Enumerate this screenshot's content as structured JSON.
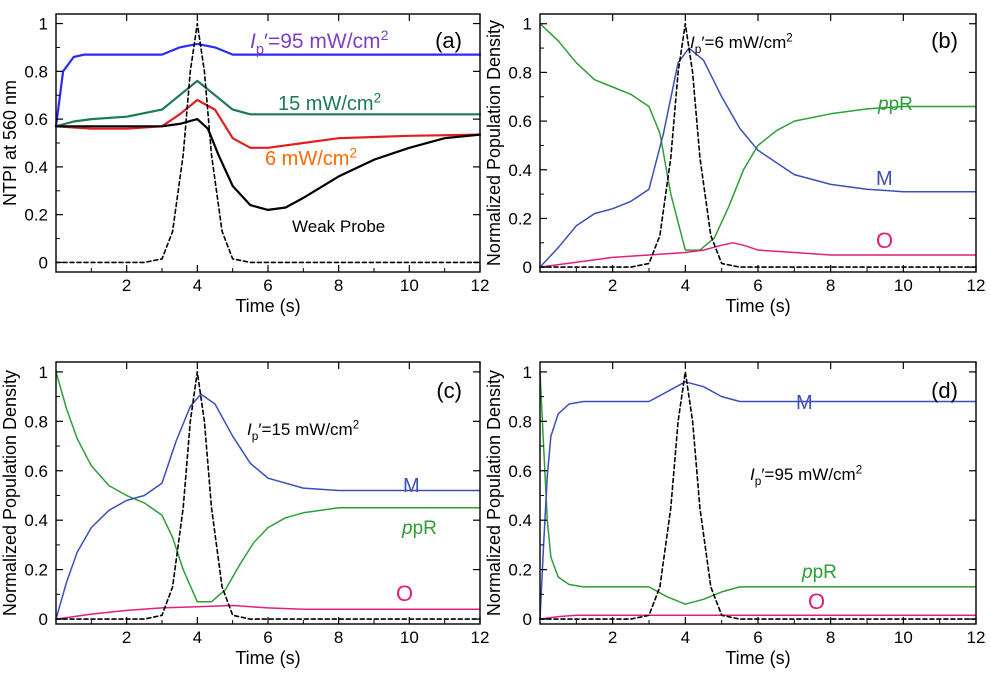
{
  "colors": {
    "blue": "#2a2aff",
    "blue_m": "#3b4fb8",
    "green_dark": "#1d7a55",
    "green": "#2e9e37",
    "red": "#e02020",
    "orange": "#ff6a00",
    "purple": "#8040c0",
    "magenta": "#e0207a",
    "black": "#000000"
  },
  "chart_data": [
    {
      "panel": "(a)",
      "type": "line",
      "xlabel": "Time (s)",
      "ylabel": "NTPI at 560 nm",
      "xlim": [
        0,
        12
      ],
      "ylim": [
        -0.04,
        1.04
      ],
      "xticks": [
        2,
        4,
        6,
        8,
        10,
        12
      ],
      "yticks": [
        0,
        0.2,
        0.4,
        0.6,
        0.8,
        1
      ],
      "ytick_labels": [
        "0",
        "0.2",
        "0.4",
        "0.6",
        "0.8",
        "1"
      ],
      "series": [
        {
          "name": "Ip'=95 mW/cm2",
          "color": "#2a2aff",
          "style": "solid",
          "x": [
            0,
            0.2,
            0.5,
            0.8,
            1.2,
            2,
            3,
            3.5,
            4,
            4.5,
            5,
            6,
            8,
            10,
            12
          ],
          "y": [
            0.57,
            0.8,
            0.86,
            0.87,
            0.87,
            0.87,
            0.87,
            0.9,
            0.915,
            0.9,
            0.87,
            0.87,
            0.87,
            0.87,
            0.87
          ]
        },
        {
          "name": "15 mW/cm2",
          "color": "#1d7a55",
          "style": "solid",
          "x": [
            0,
            0.5,
            1,
            2,
            3,
            3.5,
            4,
            4.5,
            5,
            5.5,
            6,
            8,
            10,
            12
          ],
          "y": [
            0.57,
            0.59,
            0.6,
            0.61,
            0.64,
            0.7,
            0.76,
            0.7,
            0.64,
            0.62,
            0.62,
            0.62,
            0.62,
            0.62
          ]
        },
        {
          "name": "6 mW/cm2",
          "color": "#e02020",
          "style": "solid",
          "x": [
            0,
            1,
            2,
            3,
            3.5,
            4,
            4.5,
            5,
            5.5,
            6,
            7,
            8,
            10,
            12
          ],
          "y": [
            0.57,
            0.56,
            0.56,
            0.57,
            0.62,
            0.68,
            0.64,
            0.52,
            0.48,
            0.48,
            0.5,
            0.52,
            0.53,
            0.535
          ]
        },
        {
          "name": "Weak Probe",
          "color": "#000000",
          "style": "solid",
          "x": [
            0,
            1,
            2,
            3,
            3.5,
            4,
            4.3,
            4.6,
            5,
            5.5,
            6,
            6.5,
            7,
            8,
            9,
            10,
            11,
            12
          ],
          "y": [
            0.57,
            0.57,
            0.57,
            0.57,
            0.58,
            0.6,
            0.56,
            0.45,
            0.32,
            0.24,
            0.22,
            0.23,
            0.27,
            0.36,
            0.43,
            0.48,
            0.52,
            0.535
          ]
        },
        {
          "name": "pulse",
          "color": "#000000",
          "style": "dashed",
          "x": [
            0,
            2.5,
            3.0,
            3.3,
            3.6,
            3.8,
            4.0,
            4.2,
            4.4,
            4.7,
            5.0,
            5.5,
            12
          ],
          "y": [
            0,
            0,
            0.015,
            0.13,
            0.45,
            0.8,
            1.0,
            0.8,
            0.45,
            0.13,
            0.015,
            0,
            0
          ]
        }
      ],
      "annotations": [
        {
          "text": "(a)",
          "color": "#000000"
        },
        {
          "text": "Ip′=95 mW/cm2",
          "color": "#8040c0"
        },
        {
          "text": "15  mW/cm2",
          "color": "#1d7a55"
        },
        {
          "text": "6  mW/cm2",
          "color": "#ff6a00"
        },
        {
          "text": "Weak Probe",
          "color": "#000000"
        }
      ]
    },
    {
      "panel": "(b)",
      "type": "line",
      "xlabel": "Time (s)",
      "ylabel": "Normalized Population Density",
      "xlim": [
        0,
        12
      ],
      "ylim": [
        -0.02,
        1.04
      ],
      "xticks": [
        2,
        4,
        6,
        8,
        10,
        12
      ],
      "yticks": [
        0,
        0.2,
        0.4,
        0.6,
        0.8,
        1
      ],
      "ytick_labels": [
        "0",
        "0.2",
        "0.4",
        "0.6",
        "0.8",
        "1"
      ],
      "series": [
        {
          "name": "ppR",
          "color": "#2e9e37",
          "style": "solid",
          "x": [
            0,
            0.5,
            1,
            1.5,
            2,
            2.5,
            3,
            3.3,
            3.6,
            4,
            4.4,
            4.8,
            5.2,
            5.6,
            6,
            6.5,
            7,
            8,
            9,
            10,
            12
          ],
          "y": [
            1.0,
            0.93,
            0.84,
            0.77,
            0.74,
            0.71,
            0.66,
            0.55,
            0.3,
            0.07,
            0.07,
            0.12,
            0.25,
            0.4,
            0.5,
            0.56,
            0.6,
            0.63,
            0.65,
            0.66,
            0.66
          ]
        },
        {
          "name": "M",
          "color": "#3b4fb8",
          "style": "solid",
          "x": [
            0,
            0.5,
            1,
            1.5,
            2,
            2.5,
            3,
            3.4,
            3.8,
            4.1,
            4.5,
            5,
            5.5,
            6,
            7,
            8,
            9,
            10,
            12
          ],
          "y": [
            0,
            0.08,
            0.17,
            0.22,
            0.24,
            0.27,
            0.32,
            0.55,
            0.84,
            0.9,
            0.85,
            0.7,
            0.57,
            0.48,
            0.38,
            0.34,
            0.32,
            0.31,
            0.31
          ]
        },
        {
          "name": "O",
          "color": "#e0207a",
          "style": "solid",
          "x": [
            0,
            1,
            2,
            3,
            4,
            4.5,
            5,
            5.3,
            5.6,
            6,
            7,
            8,
            10,
            12
          ],
          "y": [
            0,
            0.02,
            0.04,
            0.05,
            0.06,
            0.07,
            0.09,
            0.1,
            0.09,
            0.07,
            0.06,
            0.05,
            0.05,
            0.05
          ]
        },
        {
          "name": "pulse",
          "color": "#000000",
          "style": "dashed",
          "x": [
            0,
            2.5,
            3.0,
            3.3,
            3.6,
            3.8,
            4.0,
            4.2,
            4.4,
            4.7,
            5.0,
            5.5,
            12
          ],
          "y": [
            0,
            0,
            0.015,
            0.13,
            0.45,
            0.8,
            1.0,
            0.8,
            0.45,
            0.13,
            0.015,
            0,
            0
          ]
        }
      ],
      "annotations": [
        {
          "text": "(b)",
          "color": "#000000"
        },
        {
          "text": "Ip′=6 mW/cm2",
          "color": "#000000"
        },
        {
          "text": "ppR",
          "color": "#2e9e37"
        },
        {
          "text": "M",
          "color": "#3b4fb8"
        },
        {
          "text": "O",
          "color": "#e0207a"
        }
      ]
    },
    {
      "panel": "(c)",
      "type": "line",
      "xlabel": "Time (s)",
      "ylabel": "Normalized Population Density",
      "xlim": [
        0,
        12
      ],
      "ylim": [
        -0.02,
        1.04
      ],
      "xticks": [
        2,
        4,
        6,
        8,
        10,
        12
      ],
      "yticks": [
        0,
        0.2,
        0.4,
        0.6,
        0.8,
        1
      ],
      "ytick_labels": [
        "0",
        "0.2",
        "0.4",
        "0.6",
        "0.8",
        "1"
      ],
      "series": [
        {
          "name": "ppR",
          "color": "#2e9e37",
          "style": "solid",
          "x": [
            0,
            0.3,
            0.6,
            1,
            1.5,
            2,
            2.5,
            3,
            3.3,
            3.6,
            4,
            4.4,
            4.8,
            5.2,
            5.6,
            6,
            6.5,
            7,
            8,
            12
          ],
          "y": [
            1.0,
            0.85,
            0.73,
            0.62,
            0.54,
            0.5,
            0.47,
            0.42,
            0.33,
            0.2,
            0.07,
            0.07,
            0.12,
            0.22,
            0.31,
            0.37,
            0.41,
            0.43,
            0.45,
            0.45
          ]
        },
        {
          "name": "M",
          "color": "#3b4fb8",
          "style": "solid",
          "x": [
            0,
            0.3,
            0.6,
            1,
            1.5,
            2,
            2.5,
            3,
            3.4,
            3.8,
            4.1,
            4.5,
            5,
            5.5,
            6,
            7,
            8,
            10,
            12
          ],
          "y": [
            0,
            0.15,
            0.27,
            0.37,
            0.44,
            0.48,
            0.5,
            0.55,
            0.72,
            0.86,
            0.91,
            0.87,
            0.74,
            0.63,
            0.57,
            0.53,
            0.52,
            0.52,
            0.52
          ]
        },
        {
          "name": "O",
          "color": "#e0207a",
          "style": "solid",
          "x": [
            0,
            1,
            2,
            3,
            4,
            5,
            6,
            7,
            8,
            10,
            12
          ],
          "y": [
            0,
            0.02,
            0.035,
            0.045,
            0.05,
            0.055,
            0.045,
            0.04,
            0.04,
            0.04,
            0.04
          ]
        },
        {
          "name": "pulse",
          "color": "#000000",
          "style": "dashed",
          "x": [
            0,
            2.5,
            3.0,
            3.3,
            3.6,
            3.8,
            4.0,
            4.2,
            4.4,
            4.7,
            5.0,
            5.5,
            12
          ],
          "y": [
            0,
            0,
            0.015,
            0.13,
            0.45,
            0.8,
            1.0,
            0.8,
            0.45,
            0.13,
            0.015,
            0,
            0
          ]
        }
      ],
      "annotations": [
        {
          "text": "(c)",
          "color": "#000000"
        },
        {
          "text": "Ip′=15 mW/cm2",
          "color": "#000000"
        },
        {
          "text": "M",
          "color": "#3b4fb8"
        },
        {
          "text": "ppR",
          "color": "#2e9e37"
        },
        {
          "text": "O",
          "color": "#e0207a"
        }
      ]
    },
    {
      "panel": "(d)",
      "type": "line",
      "xlabel": "Time (s)",
      "ylabel": "Normalized Population Density",
      "xlim": [
        0,
        12
      ],
      "ylim": [
        -0.02,
        1.04
      ],
      "xticks": [
        2,
        4,
        6,
        8,
        10,
        12
      ],
      "yticks": [
        0,
        0.2,
        0.4,
        0.6,
        0.8,
        1
      ],
      "ytick_labels": [
        "0",
        "0.2",
        "0.4",
        "0.6",
        "0.8",
        "1"
      ],
      "series": [
        {
          "name": "ppR",
          "color": "#2e9e37",
          "style": "solid",
          "x": [
            0,
            0.1,
            0.2,
            0.3,
            0.5,
            0.8,
            1.2,
            2,
            3,
            3.5,
            4,
            4.5,
            5,
            5.5,
            6,
            8,
            12
          ],
          "y": [
            1.0,
            0.7,
            0.4,
            0.25,
            0.17,
            0.14,
            0.13,
            0.13,
            0.13,
            0.09,
            0.06,
            0.08,
            0.11,
            0.13,
            0.13,
            0.13,
            0.13
          ]
        },
        {
          "name": "M",
          "color": "#3b4fb8",
          "style": "solid",
          "x": [
            0,
            0.1,
            0.2,
            0.3,
            0.5,
            0.8,
            1.2,
            2,
            3,
            3.5,
            4,
            4.5,
            5,
            5.5,
            6,
            8,
            12
          ],
          "y": [
            0,
            0.3,
            0.58,
            0.74,
            0.83,
            0.87,
            0.88,
            0.88,
            0.88,
            0.92,
            0.96,
            0.94,
            0.9,
            0.88,
            0.88,
            0.88,
            0.88
          ]
        },
        {
          "name": "O",
          "color": "#e0207a",
          "style": "solid",
          "x": [
            0,
            0.5,
            1,
            2,
            4,
            6,
            8,
            10,
            12
          ],
          "y": [
            0,
            0.01,
            0.015,
            0.015,
            0.015,
            0.015,
            0.015,
            0.015,
            0.015
          ]
        },
        {
          "name": "pulse",
          "color": "#000000",
          "style": "dashed",
          "x": [
            0,
            2.5,
            3.0,
            3.3,
            3.6,
            3.8,
            4.0,
            4.2,
            4.4,
            4.7,
            5.0,
            5.5,
            12
          ],
          "y": [
            0,
            0,
            0.015,
            0.13,
            0.45,
            0.8,
            1.0,
            0.8,
            0.45,
            0.13,
            0.015,
            0,
            0
          ]
        }
      ],
      "annotations": [
        {
          "text": "(d)",
          "color": "#000000"
        },
        {
          "text": "M",
          "color": "#3b4fb8"
        },
        {
          "text": "Ip′=95 mW/cm2",
          "color": "#000000"
        },
        {
          "text": "ppR",
          "color": "#2e9e37"
        },
        {
          "text": "O",
          "color": "#e0207a"
        }
      ]
    }
  ]
}
